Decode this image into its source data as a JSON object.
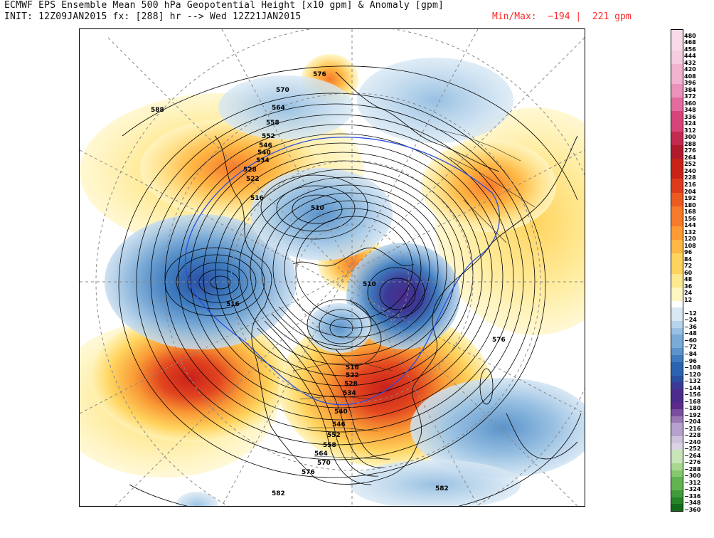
{
  "header": {
    "title": "ECMWF EPS Ensemble Mean 500 hPa Geopotential Height [x10 gpm] & Anomaly [gpm]",
    "init": "INIT: 12Z09JAN2015 fx: [288] hr --> Wed 12Z21JAN2015",
    "minmax": "Min/Max:  −194 |  221 gpm"
  },
  "colors": {
    "positive_scale": [
      "#fff7c2",
      "#ffe98f",
      "#ffd45e",
      "#ffb845",
      "#ff9a35",
      "#f77a2a",
      "#ec5a22",
      "#dd3b1c",
      "#c92317",
      "#b01a2c",
      "#c22a4f",
      "#d6447a",
      "#e36b9e",
      "#eb92bb",
      "#f1b3cf",
      "#f5cde0",
      "#f7dbe8"
    ],
    "negative_scale": [
      "#d8e8f4",
      "#b8d4ec",
      "#98c0e2",
      "#7aaad6",
      "#5b93ca",
      "#3f7cbf",
      "#2a64b0",
      "#2a4ea0",
      "#3b3a96",
      "#4b2c8c",
      "#5c2a88",
      "#7a4e9e",
      "#9a78b6",
      "#b6a2cc",
      "#cfc4de",
      "#dcd4e6",
      "#c8e6b8",
      "#a8d890",
      "#86c86e",
      "#62b450",
      "#409c3a",
      "#258428",
      "#126a1a"
    ]
  },
  "colorbar_labels": [
    "480",
    "468",
    "456",
    "444",
    "432",
    "420",
    "408",
    "396",
    "384",
    "372",
    "360",
    "348",
    "336",
    "324",
    "312",
    "300",
    "288",
    "276",
    "264",
    "252",
    "240",
    "228",
    "216",
    "204",
    "192",
    "180",
    "168",
    "156",
    "144",
    "132",
    "120",
    "108",
    "96",
    "84",
    "72",
    "60",
    "48",
    "36",
    "24",
    "12",
    "−12",
    "−24",
    "−36",
    "−48",
    "−60",
    "−72",
    "−84",
    "−96",
    "−108",
    "−120",
    "−132",
    "−144",
    "−156",
    "−168",
    "−180",
    "−192",
    "−204",
    "−216",
    "−228",
    "−240",
    "−252",
    "−264",
    "−276",
    "−288",
    "−300",
    "−312",
    "−324",
    "−336",
    "−348",
    "−360"
  ],
  "contour_labels": [
    "588",
    "576",
    "570",
    "564",
    "558",
    "552",
    "546",
    "540",
    "534",
    "528",
    "522",
    "516",
    "510",
    "510",
    "516",
    "576",
    "516",
    "522",
    "528",
    "534",
    "540",
    "546",
    "552",
    "558",
    "564",
    "570",
    "576",
    "582",
    "582"
  ]
}
